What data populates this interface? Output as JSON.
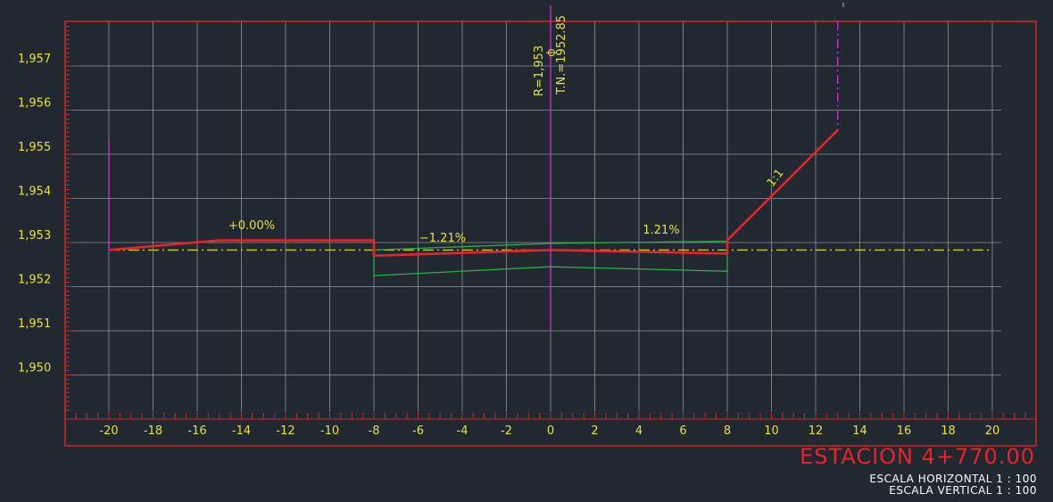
{
  "chart_data": {
    "type": "cross-section",
    "title": "ESTACION 4+770.00",
    "scale_horizontal": "ESCALA HORIZONTAL 1 : 100",
    "scale_vertical": "ESCALA VERTICAL 1 : 100",
    "x_ticks": [
      "-20",
      "-18",
      "-16",
      "-14",
      "-12",
      "-10",
      "-8",
      "-6",
      "-4",
      "-2",
      "0",
      "2",
      "4",
      "6",
      "8",
      "10",
      "12",
      "14",
      "16",
      "18",
      "20"
    ],
    "y_ticks": [
      {
        "value": 1957,
        "label": "1,957"
      },
      {
        "value": 1956,
        "label": "1,956"
      },
      {
        "value": 1955,
        "label": "1,955"
      },
      {
        "value": 1954,
        "label": "1,954"
      },
      {
        "value": 1953,
        "label": "1,953"
      },
      {
        "value": 1952,
        "label": "1,952"
      },
      {
        "value": 1951,
        "label": "1,951"
      },
      {
        "value": 1950,
        "label": "1,950"
      }
    ],
    "xlim": [
      -22,
      22
    ],
    "ylim": [
      1949.1,
      1958
    ],
    "ground_level": 1952.83,
    "labels": {
      "centerline_r": "R=1,953",
      "centerline_tn": "T.N.=1952.85",
      "slope_left": "+0.00%",
      "slope_mid": "−1.21%",
      "slope_right": "1.21%",
      "cut_slope": "1:1"
    },
    "series": [
      {
        "color": "#e8232b",
        "points": [
          [
            -20,
            1952.83
          ],
          [
            -15,
            1953.05
          ],
          [
            -8,
            1953.05
          ],
          [
            -8,
            1952.7
          ],
          [
            0,
            1952.83
          ],
          [
            8,
            1952.75
          ],
          [
            8,
            1953.05
          ],
          [
            13,
            1955.55
          ]
        ]
      },
      {
        "color": "#27b34a",
        "points": [
          [
            -8,
            1952.83
          ],
          [
            0,
            1952.98
          ],
          [
            8,
            1953.03
          ],
          [
            8,
            1952.35
          ],
          [
            0,
            1952.45
          ],
          [
            -8,
            1952.25
          ],
          [
            -8,
            1952.83
          ]
        ]
      }
    ],
    "colors": {
      "background": "#212830",
      "frame": "#c82a2a",
      "grid": "#8f9499",
      "tick_text": "#e7e23a",
      "centerline": "#c233c6"
    }
  }
}
